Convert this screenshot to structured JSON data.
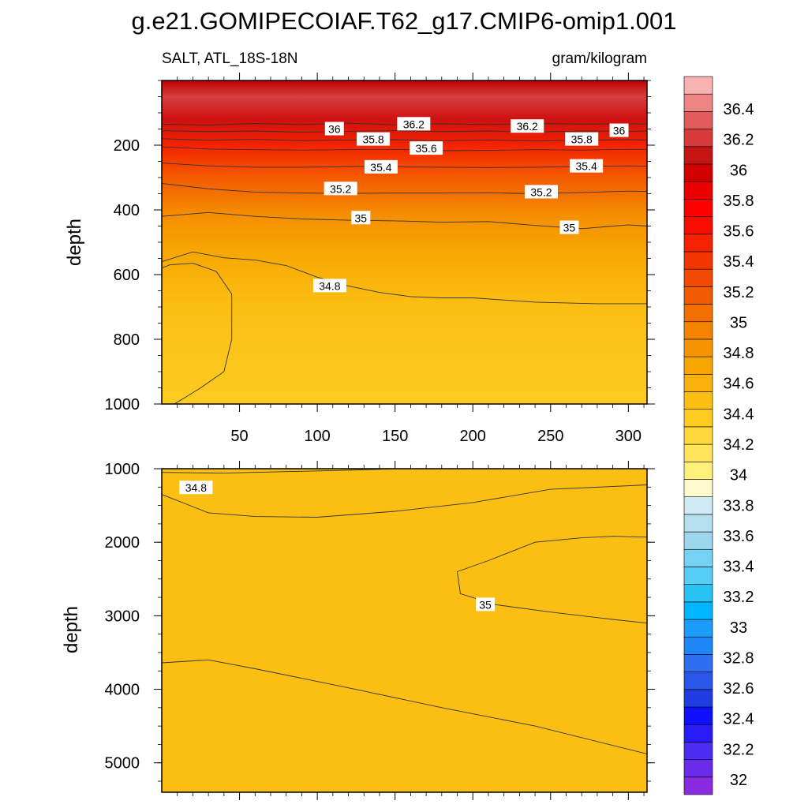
{
  "title": "g.e21.GOMIPECOIAF.T62_g17.CMIP6-omip1.001",
  "colorbar": {
    "labels": [
      "32",
      "32.2",
      "32.4",
      "32.6",
      "32.8",
      "33",
      "33.2",
      "33.4",
      "33.6",
      "33.8",
      "34",
      "34.2",
      "34.4",
      "34.6",
      "34.8",
      "35",
      "35.2",
      "35.4",
      "35.6",
      "35.8",
      "36",
      "36.2",
      "36.4"
    ],
    "colors": [
      "#8a2be2",
      "#6a2ce8",
      "#4b2cf0",
      "#2a1cf8",
      "#1010ff",
      "#1f3de0",
      "#2a57e8",
      "#2e6ef0",
      "#1f86f5",
      "#1a9cf8",
      "#00b5ff",
      "#28c2f5",
      "#56cdf5",
      "#74d3f5",
      "#9dd7ee",
      "#b6e0f0",
      "#cfeaf5",
      "#fffacd",
      "#fff07a",
      "#ffe55a",
      "#ffd83a",
      "#fdcb20",
      "#fbbf14",
      "#f9b20c",
      "#f7a500",
      "#f59400",
      "#f38300",
      "#f27000",
      "#f25c00",
      "#f24a00",
      "#f33600",
      "#f52200",
      "#f80c00",
      "#ff0000",
      "#ea0000",
      "#d20000",
      "#c41414",
      "#d63a3a",
      "#e35a5a",
      "#ef8484",
      "#f8b2b2"
    ]
  },
  "chart_data": [
    {
      "type": "heatmap",
      "panel": "upper",
      "left_label": "SALT, ATL_18S-18N",
      "right_label": "gram/kilogram",
      "ylabel": "depth",
      "xlabel": "",
      "xlim": [
        0,
        312
      ],
      "ylim": [
        0,
        1000
      ],
      "y_inverted": true,
      "x_ticks": [
        "50",
        "100",
        "150",
        "200",
        "250",
        "300"
      ],
      "y_ticks": [
        "200",
        "400",
        "600",
        "800",
        "1000"
      ],
      "contours": [
        {
          "level": 36.2,
          "x": [
            0,
            30,
            60,
            90,
            120,
            150,
            180,
            210,
            240,
            270,
            300,
            312
          ],
          "depth": [
            135,
            138,
            133,
            136,
            132,
            137,
            134,
            136,
            133,
            135,
            134,
            135
          ]
        },
        {
          "level": 36.0,
          "x": [
            0,
            30,
            60,
            90,
            120,
            150,
            180,
            210,
            240,
            270,
            300,
            312
          ],
          "depth": [
            155,
            158,
            156,
            160,
            157,
            155,
            158,
            156,
            159,
            156,
            157,
            156
          ]
        },
        {
          "level": 35.8,
          "x": [
            0,
            30,
            60,
            90,
            120,
            150,
            180,
            210,
            240,
            270,
            300,
            312
          ],
          "depth": [
            180,
            185,
            182,
            186,
            184,
            183,
            186,
            184,
            187,
            185,
            183,
            184
          ]
        },
        {
          "level": 35.6,
          "x": [
            0,
            30,
            60,
            90,
            120,
            150,
            180,
            210,
            240,
            270,
            300,
            312
          ],
          "depth": [
            205,
            212,
            214,
            215,
            214,
            213,
            217,
            216,
            214,
            215,
            213,
            213
          ]
        },
        {
          "level": 35.4,
          "x": [
            0,
            30,
            60,
            90,
            120,
            150,
            180,
            210,
            240,
            270,
            300,
            312
          ],
          "depth": [
            255,
            264,
            268,
            268,
            266,
            267,
            268,
            269,
            268,
            266,
            264,
            265
          ]
        },
        {
          "level": 35.2,
          "x": [
            0,
            30,
            60,
            90,
            120,
            150,
            180,
            210,
            240,
            270,
            300,
            312
          ],
          "depth": [
            318,
            335,
            345,
            348,
            349,
            348,
            348,
            347,
            350,
            346,
            342,
            343
          ]
        },
        {
          "level": 35.0,
          "x": [
            0,
            30,
            60,
            90,
            120,
            150,
            180,
            210,
            240,
            270,
            300,
            312
          ],
          "depth": [
            420,
            408,
            420,
            428,
            432,
            434,
            438,
            436,
            448,
            458,
            446,
            450
          ]
        },
        {
          "level": 34.8,
          "x": [
            0,
            20,
            40,
            60,
            80,
            100,
            120,
            140,
            160,
            180,
            200,
            240,
            280,
            300,
            312
          ],
          "depth": [
            560,
            530,
            548,
            555,
            572,
            608,
            635,
            655,
            668,
            672,
            672,
            685,
            690,
            690,
            690
          ]
        },
        {
          "level": 34.6,
          "x": [
            0,
            5,
            20,
            35,
            45,
            45,
            40,
            25,
            15,
            8,
            0
          ],
          "depth": [
            580,
            570,
            565,
            590,
            660,
            800,
            900,
            950,
            980,
            1000,
            1000
          ]
        }
      ],
      "contour_labels": [
        {
          "text": "36",
          "x": 111,
          "depth": 150
        },
        {
          "text": "36.2",
          "x": 162,
          "depth": 135
        },
        {
          "text": "36.2",
          "x": 235,
          "depth": 142
        },
        {
          "text": "36",
          "x": 294,
          "depth": 155
        },
        {
          "text": "35.8",
          "x": 136,
          "depth": 182
        },
        {
          "text": "35.8",
          "x": 270,
          "depth": 182
        },
        {
          "text": "35.6",
          "x": 170,
          "depth": 210
        },
        {
          "text": "35.4",
          "x": 141,
          "depth": 268
        },
        {
          "text": "35.4",
          "x": 273,
          "depth": 265
        },
        {
          "text": "35.2",
          "x": 115,
          "depth": 335
        },
        {
          "text": "35.2",
          "x": 244,
          "depth": 345
        },
        {
          "text": "35",
          "x": 128,
          "depth": 425
        },
        {
          "text": "35",
          "x": 262,
          "depth": 455
        },
        {
          "text": "34.8",
          "x": 108,
          "depth": 635
        }
      ]
    },
    {
      "type": "heatmap",
      "panel": "lower",
      "ylabel": "depth",
      "xlabel": "",
      "xlim": [
        0,
        312
      ],
      "ylim": [
        1000,
        5400
      ],
      "y_inverted": true,
      "y_ticks": [
        "1000",
        "2000",
        "3000",
        "4000",
        "5000"
      ],
      "contours": [
        {
          "level": 34.8,
          "x": [
            0,
            40,
            80,
            120,
            150,
            312
          ],
          "depth": [
            1050,
            1060,
            1040,
            1020,
            1000,
            1000
          ]
        },
        {
          "level": 34.8,
          "x": [
            0,
            30,
            60,
            100,
            150,
            200,
            250,
            312
          ],
          "depth": [
            1350,
            1600,
            1650,
            1660,
            1580,
            1460,
            1280,
            1220
          ]
        },
        {
          "level": 35.0,
          "x": [
            210,
            190,
            192,
            215,
            250,
            290,
            312
          ],
          "depth": [
            2250,
            2400,
            2700,
            2850,
            2950,
            3050,
            3100
          ]
        },
        {
          "level": 35.0,
          "x": [
            210,
            240,
            270,
            290,
            312
          ],
          "depth": [
            2250,
            2000,
            1940,
            1920,
            1930
          ]
        },
        {
          "level": 34.8,
          "x": [
            0,
            30,
            60,
            120,
            180,
            240,
            312
          ],
          "depth": [
            3640,
            3600,
            3720,
            3980,
            4250,
            4500,
            4880
          ]
        }
      ],
      "contour_labels": [
        {
          "text": "34.8",
          "x": 22,
          "depth": 1260
        },
        {
          "text": "35",
          "x": 208,
          "depth": 2850
        }
      ]
    }
  ]
}
